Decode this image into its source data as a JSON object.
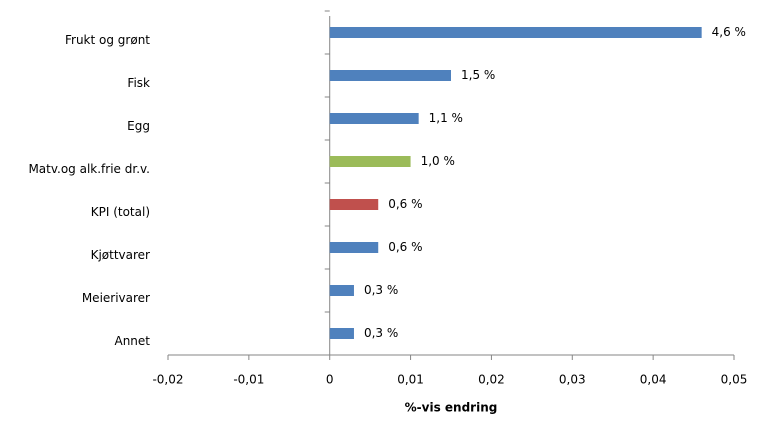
{
  "chart_data": {
    "type": "hbar",
    "x_label": "%-vis endring",
    "categories": [
      "Frukt og grønt",
      "Fisk",
      "Egg",
      "Matv.og alk.frie dr.v.",
      "KPI (total)",
      "Kjøttvarer",
      "Meierivarer",
      "Annet"
    ],
    "values": [
      0.046,
      0.015,
      0.011,
      0.01,
      0.006,
      0.006,
      0.003,
      0.003
    ],
    "value_labels": [
      "4,6 %",
      "1,5 %",
      "1,1 %",
      "1,0 %",
      "0,6 %",
      "0,6 %",
      "0,3 %",
      "0,3 %"
    ],
    "colors": [
      "#4f81bd",
      "#4f81bd",
      "#4f81bd",
      "#9bbb59",
      "#c0504d",
      "#4f81bd",
      "#4f81bd",
      "#4f81bd"
    ],
    "xlim": [
      -0.02,
      0.05
    ],
    "xticks": [
      {
        "value": -0.02,
        "label": "-0,02"
      },
      {
        "value": -0.01,
        "label": "-0,01"
      },
      0,
      {
        "value": 0.01,
        "label": "0,01"
      },
      {
        "value": 0.02,
        "label": "0,02"
      },
      {
        "value": 0.03,
        "label": "0,03"
      },
      {
        "value": 0.04,
        "label": "0,04"
      },
      {
        "value": 0.05,
        "label": "0,05"
      }
    ],
    "grid": false
  }
}
